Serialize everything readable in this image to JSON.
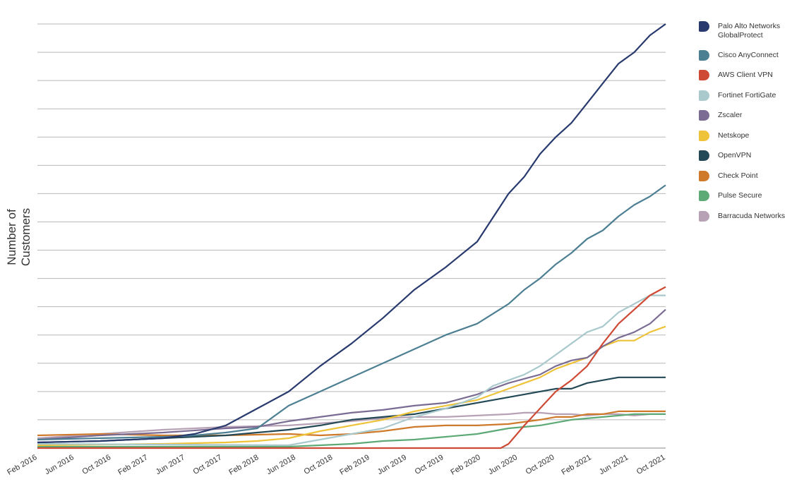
{
  "chart_data": {
    "type": "line",
    "title": "",
    "xlabel": "",
    "ylabel": "Number of Customers",
    "x_tick_labels": [
      "Feb 2016",
      "Jun 2016",
      "Oct 2016",
      "Feb 2017",
      "Jun 2017",
      "Oct 2017",
      "Feb 2018",
      "Jun 2018",
      "Oct 2018",
      "Feb 2019",
      "Jun 2019",
      "Oct 2019",
      "Feb 2020",
      "Jun 2020",
      "Oct 2020",
      "Feb 2021",
      "Jun 2021",
      "Oct 2021"
    ],
    "y_axis_labels_shown": false,
    "y_gridlines": 15,
    "ylim": [
      0,
      15
    ],
    "grid": "horizontal",
    "legend_position": "right",
    "x_unit": "month index from Feb 2016 (0) to Oct 2021 (68)",
    "series": [
      {
        "name": "Palo Alto Networks GlobalProtect",
        "color": "#283a6e",
        "points": [
          [
            0,
            0.2
          ],
          [
            8,
            0.25
          ],
          [
            16,
            0.35
          ],
          [
            20,
            0.5
          ],
          [
            24,
            0.8
          ],
          [
            28,
            1.4
          ],
          [
            32,
            2.0
          ],
          [
            36,
            2.9
          ],
          [
            40,
            3.7
          ],
          [
            44,
            4.6
          ],
          [
            48,
            5.6
          ],
          [
            52,
            6.4
          ],
          [
            56,
            7.3
          ],
          [
            60,
            9.0
          ],
          [
            62,
            9.6
          ],
          [
            64,
            10.4
          ],
          [
            66,
            11.0
          ],
          [
            68,
            11.5
          ],
          [
            70,
            12.2
          ],
          [
            72,
            12.9
          ],
          [
            74,
            13.6
          ],
          [
            76,
            14.0
          ],
          [
            78,
            14.6
          ],
          [
            80,
            15.0
          ]
        ]
      },
      {
        "name": "Cisco AnyConnect",
        "color": "#4d7f93",
        "points": [
          [
            0,
            0.3
          ],
          [
            8,
            0.35
          ],
          [
            16,
            0.4
          ],
          [
            20,
            0.45
          ],
          [
            24,
            0.55
          ],
          [
            28,
            0.7
          ],
          [
            32,
            1.5
          ],
          [
            36,
            2.0
          ],
          [
            40,
            2.5
          ],
          [
            44,
            3.0
          ],
          [
            48,
            3.5
          ],
          [
            52,
            4.0
          ],
          [
            56,
            4.4
          ],
          [
            60,
            5.1
          ],
          [
            62,
            5.6
          ],
          [
            64,
            6.0
          ],
          [
            66,
            6.5
          ],
          [
            68,
            6.9
          ],
          [
            70,
            7.4
          ],
          [
            72,
            7.7
          ],
          [
            74,
            8.2
          ],
          [
            76,
            8.6
          ],
          [
            78,
            8.9
          ],
          [
            80,
            9.3
          ]
        ]
      },
      {
        "name": "AWS Client VPN",
        "color": "#cf4a35",
        "points": [
          [
            0,
            0
          ],
          [
            59,
            0
          ],
          [
            60,
            0.15
          ],
          [
            62,
            0.8
          ],
          [
            64,
            1.4
          ],
          [
            66,
            2.0
          ],
          [
            68,
            2.4
          ],
          [
            70,
            2.9
          ],
          [
            72,
            3.7
          ],
          [
            74,
            4.4
          ],
          [
            76,
            4.9
          ],
          [
            78,
            5.4
          ],
          [
            80,
            5.7
          ]
        ]
      },
      {
        "name": "Fortinet FortiGate",
        "color": "#a9c9cc",
        "points": [
          [
            0,
            0.15
          ],
          [
            32,
            0.1
          ],
          [
            36,
            0.3
          ],
          [
            40,
            0.5
          ],
          [
            44,
            0.7
          ],
          [
            48,
            1.1
          ],
          [
            52,
            1.4
          ],
          [
            56,
            1.8
          ],
          [
            58,
            2.2
          ],
          [
            60,
            2.4
          ],
          [
            62,
            2.6
          ],
          [
            64,
            2.9
          ],
          [
            66,
            3.3
          ],
          [
            68,
            3.7
          ],
          [
            70,
            4.1
          ],
          [
            72,
            4.3
          ],
          [
            74,
            4.8
          ],
          [
            76,
            5.1
          ],
          [
            78,
            5.4
          ],
          [
            80,
            5.4
          ]
        ]
      },
      {
        "name": "Zscaler",
        "color": "#7a6c93",
        "points": [
          [
            0,
            0.3
          ],
          [
            8,
            0.45
          ],
          [
            16,
            0.55
          ],
          [
            24,
            0.7
          ],
          [
            28,
            0.75
          ],
          [
            32,
            0.95
          ],
          [
            36,
            1.1
          ],
          [
            40,
            1.25
          ],
          [
            44,
            1.35
          ],
          [
            48,
            1.5
          ],
          [
            52,
            1.6
          ],
          [
            56,
            1.9
          ],
          [
            60,
            2.3
          ],
          [
            64,
            2.6
          ],
          [
            66,
            2.9
          ],
          [
            68,
            3.1
          ],
          [
            70,
            3.2
          ],
          [
            72,
            3.6
          ],
          [
            74,
            3.9
          ],
          [
            76,
            4.1
          ],
          [
            78,
            4.4
          ],
          [
            80,
            4.9
          ]
        ]
      },
      {
        "name": "Netskope",
        "color": "#eec33a",
        "points": [
          [
            0,
            0.1
          ],
          [
            16,
            0.15
          ],
          [
            24,
            0.2
          ],
          [
            28,
            0.25
          ],
          [
            32,
            0.35
          ],
          [
            36,
            0.6
          ],
          [
            40,
            0.8
          ],
          [
            44,
            1.0
          ],
          [
            48,
            1.3
          ],
          [
            52,
            1.5
          ],
          [
            56,
            1.7
          ],
          [
            60,
            2.1
          ],
          [
            62,
            2.3
          ],
          [
            64,
            2.5
          ],
          [
            66,
            2.8
          ],
          [
            68,
            3.0
          ],
          [
            70,
            3.2
          ],
          [
            72,
            3.6
          ],
          [
            74,
            3.8
          ],
          [
            76,
            3.8
          ],
          [
            78,
            4.1
          ],
          [
            80,
            4.3
          ]
        ]
      },
      {
        "name": "OpenVPN",
        "color": "#234856",
        "points": [
          [
            0,
            0.2
          ],
          [
            8,
            0.25
          ],
          [
            16,
            0.35
          ],
          [
            24,
            0.45
          ],
          [
            28,
            0.55
          ],
          [
            32,
            0.65
          ],
          [
            36,
            0.8
          ],
          [
            40,
            1.0
          ],
          [
            44,
            1.1
          ],
          [
            48,
            1.2
          ],
          [
            52,
            1.4
          ],
          [
            56,
            1.6
          ],
          [
            60,
            1.8
          ],
          [
            62,
            1.9
          ],
          [
            64,
            2.0
          ],
          [
            66,
            2.1
          ],
          [
            68,
            2.1
          ],
          [
            70,
            2.3
          ],
          [
            72,
            2.4
          ],
          [
            74,
            2.5
          ],
          [
            76,
            2.5
          ],
          [
            78,
            2.5
          ],
          [
            80,
            2.5
          ]
        ]
      },
      {
        "name": "Check Point",
        "color": "#cf7a2b",
        "points": [
          [
            0,
            0.45
          ],
          [
            8,
            0.5
          ],
          [
            16,
            0.45
          ],
          [
            24,
            0.45
          ],
          [
            32,
            0.5
          ],
          [
            36,
            0.45
          ],
          [
            40,
            0.5
          ],
          [
            44,
            0.6
          ],
          [
            48,
            0.75
          ],
          [
            52,
            0.8
          ],
          [
            56,
            0.8
          ],
          [
            60,
            0.85
          ],
          [
            64,
            1.0
          ],
          [
            66,
            1.1
          ],
          [
            68,
            1.1
          ],
          [
            70,
            1.2
          ],
          [
            72,
            1.2
          ],
          [
            74,
            1.3
          ],
          [
            76,
            1.3
          ],
          [
            78,
            1.3
          ],
          [
            80,
            1.3
          ]
        ]
      },
      {
        "name": "Pulse Secure",
        "color": "#5daa76",
        "points": [
          [
            0,
            0.05
          ],
          [
            32,
            0.05
          ],
          [
            36,
            0.1
          ],
          [
            40,
            0.15
          ],
          [
            44,
            0.25
          ],
          [
            48,
            0.3
          ],
          [
            52,
            0.4
          ],
          [
            56,
            0.5
          ],
          [
            60,
            0.7
          ],
          [
            62,
            0.75
          ],
          [
            64,
            0.8
          ],
          [
            66,
            0.9
          ],
          [
            68,
            1.0
          ],
          [
            70,
            1.05
          ],
          [
            72,
            1.1
          ],
          [
            74,
            1.15
          ],
          [
            76,
            1.2
          ],
          [
            78,
            1.2
          ],
          [
            80,
            1.2
          ]
        ]
      },
      {
        "name": "Barracuda Networks",
        "color": "#b7a2b5",
        "points": [
          [
            0,
            0.35
          ],
          [
            8,
            0.5
          ],
          [
            16,
            0.65
          ],
          [
            24,
            0.75
          ],
          [
            32,
            0.8
          ],
          [
            40,
            0.95
          ],
          [
            44,
            1.05
          ],
          [
            48,
            1.1
          ],
          [
            52,
            1.1
          ],
          [
            56,
            1.15
          ],
          [
            60,
            1.2
          ],
          [
            62,
            1.25
          ],
          [
            64,
            1.25
          ],
          [
            66,
            1.2
          ],
          [
            68,
            1.2
          ],
          [
            70,
            1.15
          ],
          [
            72,
            1.2
          ],
          [
            74,
            1.2
          ],
          [
            76,
            1.15
          ],
          [
            78,
            1.2
          ],
          [
            80,
            1.2
          ]
        ]
      }
    ]
  }
}
